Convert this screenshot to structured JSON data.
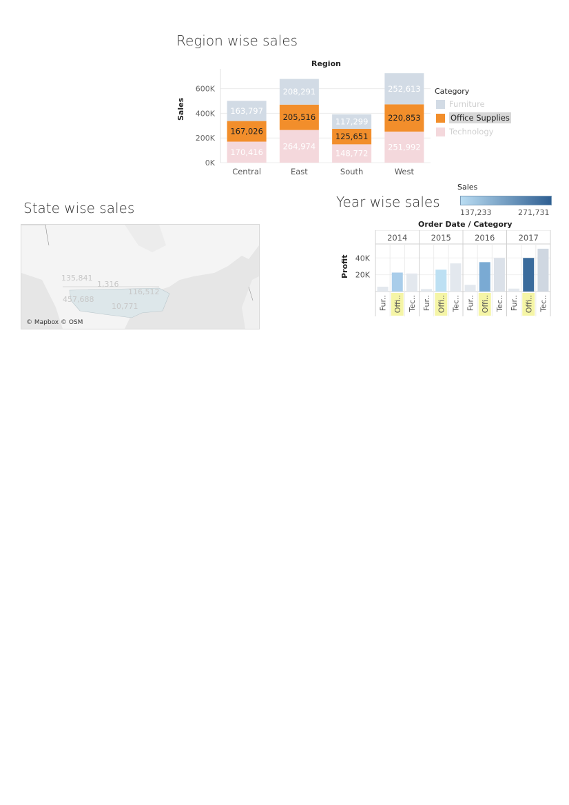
{
  "region_chart": {
    "title": "Region wise sales",
    "column_header": "Region",
    "ylabel": "Sales",
    "legend_title": "Category",
    "legend": [
      {
        "label": "Furniture",
        "color": "#d2dbe5",
        "dim": true
      },
      {
        "label": "Office Supplies",
        "color": "#f28e2b",
        "dim": false,
        "highlighted": true
      },
      {
        "label": "Technology",
        "color": "#f4d8dc",
        "dim": true
      }
    ]
  },
  "map_chart": {
    "title": "State wise sales",
    "credit": "© Mapbox © OSM",
    "labels": [
      "135,841",
      "1,316",
      "116,512",
      "457,688",
      "10,771"
    ]
  },
  "year_chart": {
    "title": "Year wise sales",
    "header": "Order Date  /  Category",
    "ylabel": "Profit",
    "color_legend_title": "Sales",
    "color_legend_min": "137,233",
    "color_legend_max": "271,731"
  },
  "chart_data": [
    {
      "type": "bar",
      "stacked": true,
      "title": "Region wise sales",
      "xlabel": "Region",
      "ylabel": "Sales",
      "categories": [
        "Central",
        "East",
        "South",
        "West"
      ],
      "ylim": [
        0,
        760000
      ],
      "yticks": [
        "0K",
        "200K",
        "400K",
        "600K"
      ],
      "ytick_values": [
        0,
        200000,
        400000,
        600000
      ],
      "series": [
        {
          "name": "Technology",
          "values": [
            170416,
            264974,
            148772,
            251992
          ],
          "labels": [
            "170,416",
            "264,974",
            "148,772",
            "251,992"
          ],
          "color": "#f4d8dc",
          "label_color": "#ffffff"
        },
        {
          "name": "Office Supplies",
          "values": [
            167026,
            205516,
            125651,
            220853
          ],
          "labels": [
            "167,026",
            "205,516",
            "125,651",
            "220,853"
          ],
          "color": "#f28e2b",
          "label_color": "#222222"
        },
        {
          "name": "Furniture",
          "values": [
            163797,
            208291,
            117299,
            252613
          ],
          "labels": [
            "163,797",
            "208,291",
            "117,299",
            "252,613"
          ],
          "color": "#d2dbe5",
          "label_color": "#ffffff"
        }
      ],
      "grid": true,
      "legend": "right"
    },
    {
      "type": "bar",
      "title": "Year wise sales",
      "xlabel": "Order Date / Category",
      "ylabel": "Profit",
      "years": [
        "2014",
        "2015",
        "2016",
        "2017"
      ],
      "categories": [
        "Fur..",
        "Offi..",
        "Tec.."
      ],
      "yticks": [
        "20K",
        "40K"
      ],
      "ytick_values": [
        20000,
        40000
      ],
      "ylim": [
        0,
        55000
      ],
      "values": [
        [
          5800,
          22600,
          21500
        ],
        [
          3000,
          26000,
          33500
        ],
        [
          8000,
          35000,
          40000
        ],
        [
          3500,
          40000,
          51000
        ]
      ],
      "colors": [
        [
          "#e3e8ee",
          "#a9cdea",
          "#e3e8ee"
        ],
        [
          "#e3e8ee",
          "#bde0f3",
          "#e3e8ee"
        ],
        [
          "#e3e8ee",
          "#7aaad3",
          "#dbe1e9"
        ],
        [
          "#e3e8ee",
          "#3a6b9c",
          "#cfd7e1"
        ]
      ],
      "highlighted_category": "Offi..",
      "color_legend": {
        "title": "Sales",
        "min": "137,233",
        "max": "271,731"
      }
    }
  ]
}
